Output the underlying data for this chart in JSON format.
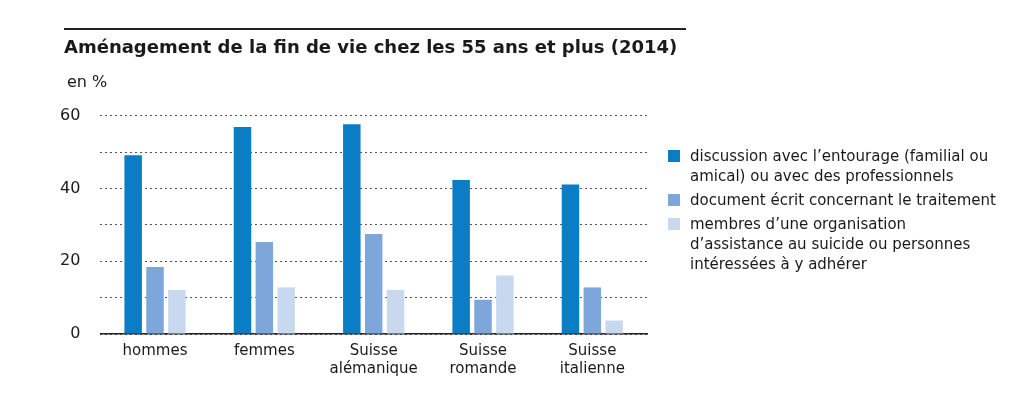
{
  "chart_data": {
    "type": "bar",
    "title": "Aménagement de la fin de vie chez les 55 ans et plus (2014)",
    "ylabel": "en %",
    "categories": [
      "hommes",
      "femmes",
      "Suisse alémanique",
      "Suisse romande",
      "Suisse italienne"
    ],
    "series": [
      {
        "name": "discussion avec l’entourage (familial ou amical) ou avec des professionnels",
        "color": "#0a7dc6",
        "values": [
          49.1,
          56.9,
          57.6,
          42.3,
          41.1
        ]
      },
      {
        "name": "document écrit concernant le traitement",
        "color": "#7da7da",
        "values": [
          18.4,
          25.3,
          27.5,
          9.4,
          12.8
        ]
      },
      {
        "name": "membres d’une organisation d’assistance au suicide ou personnes intéressées à y adhérer",
        "color": "#c8d8ef",
        "values": [
          12.1,
          12.8,
          12.1,
          16.1,
          3.7
        ]
      }
    ],
    "ylim": [
      0,
      60
    ],
    "yticks": [
      0,
      {
        "value": 10,
        "label": null
      },
      20,
      {
        "value": 30,
        "label": null
      },
      40,
      {
        "value": 50,
        "label": null
      },
      60
    ],
    "grid": "y",
    "legend": "right"
  }
}
